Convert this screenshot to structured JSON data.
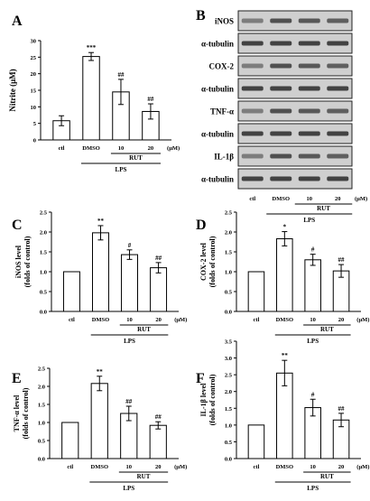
{
  "chart_data": [
    {
      "type": "bar",
      "panel": "A",
      "ylabel": "Nitrite (μM)",
      "ylim": [
        0,
        30
      ],
      "yticks": [
        0,
        5,
        10,
        15,
        20,
        25,
        30
      ],
      "ytick_decimals": 0,
      "categories": [
        "ctl",
        "DMSO",
        "10",
        "20"
      ],
      "unit_label": "(μM)",
      "group_labels": {
        "rut": "RUT",
        "lps": "LPS"
      },
      "values": [
        5.8,
        25.2,
        14.5,
        8.6
      ],
      "errors": [
        1.5,
        1.2,
        3.8,
        2.3
      ],
      "significance": [
        "",
        "***",
        "##",
        "##"
      ]
    },
    {
      "type": "bar",
      "panel": "C",
      "ylabel": [
        "iNOS level",
        "(folds of control)"
      ],
      "ylim": [
        0,
        2.5
      ],
      "yticks": [
        0,
        0.5,
        1.0,
        1.5,
        2.0,
        2.5
      ],
      "ytick_decimals": 1,
      "categories": [
        "ctl",
        "DMSO",
        "10",
        "20"
      ],
      "unit_label": "(μM)",
      "group_labels": {
        "rut": "RUT",
        "lps": "LPS"
      },
      "values": [
        1.0,
        1.98,
        1.43,
        1.1
      ],
      "errors": [
        0,
        0.18,
        0.12,
        0.13
      ],
      "significance": [
        "",
        "**",
        "#",
        "##"
      ]
    },
    {
      "type": "bar",
      "panel": "D",
      "ylabel": [
        "COX-2 level",
        "(folds of control)"
      ],
      "ylim": [
        0,
        2.5
      ],
      "yticks": [
        0,
        0.5,
        1.0,
        1.5,
        2.0,
        2.5
      ],
      "ytick_decimals": 1,
      "categories": [
        "ctl",
        "DMSO",
        "10",
        "20"
      ],
      "unit_label": "(μM)",
      "group_labels": {
        "rut": "RUT",
        "lps": "LPS"
      },
      "values": [
        1.0,
        1.83,
        1.3,
        1.02
      ],
      "errors": [
        0,
        0.18,
        0.14,
        0.16
      ],
      "significance": [
        "",
        "*",
        "#",
        "##"
      ]
    },
    {
      "type": "bar",
      "panel": "E",
      "ylabel": [
        "TNF-α level",
        "(folds of control)"
      ],
      "ylim": [
        0,
        2.5
      ],
      "yticks": [
        0,
        0.5,
        1.0,
        1.5,
        2.0,
        2.5
      ],
      "ytick_decimals": 1,
      "categories": [
        "ctl",
        "DMSO",
        "10",
        "20"
      ],
      "unit_label": "(μM)",
      "group_labels": {
        "rut": "RUT",
        "lps": "LPS"
      },
      "values": [
        1.0,
        2.08,
        1.25,
        0.92
      ],
      "errors": [
        0,
        0.2,
        0.2,
        0.1
      ],
      "significance": [
        "",
        "**",
        "##",
        "##"
      ]
    },
    {
      "type": "bar",
      "panel": "F",
      "ylabel": [
        "IL-1β level",
        "(folds of control)"
      ],
      "ylim": [
        0,
        3.5
      ],
      "yticks": [
        0,
        0.5,
        1.0,
        1.5,
        2.0,
        2.5,
        3.0,
        3.5
      ],
      "ytick_decimals": 1,
      "categories": [
        "ctl",
        "DMSO",
        "10",
        "20"
      ],
      "unit_label": "(μM)",
      "group_labels": {
        "rut": "RUT",
        "lps": "LPS"
      },
      "values": [
        1.0,
        2.55,
        1.52,
        1.15
      ],
      "errors": [
        0,
        0.38,
        0.25,
        0.2
      ],
      "significance": [
        "",
        "**",
        "#",
        "##"
      ]
    }
  ],
  "blot": {
    "panel": "B",
    "bands": [
      "iNOS",
      "α-tubulin",
      "COX-2",
      "α-tubulin",
      "TNF-α",
      "α-tubulin",
      "IL-1β",
      "α-tubulin"
    ],
    "categories": [
      "ctl",
      "DMSO",
      "10",
      "20"
    ],
    "unit_label": "(μM)",
    "group_labels": {
      "rut": "RUT",
      "lps": "LPS"
    }
  },
  "colors": {
    "bar_fill": "#ffffff",
    "axis": "#000000",
    "blot_bg": "#cfcfcf",
    "band": "#3a3a3a"
  }
}
